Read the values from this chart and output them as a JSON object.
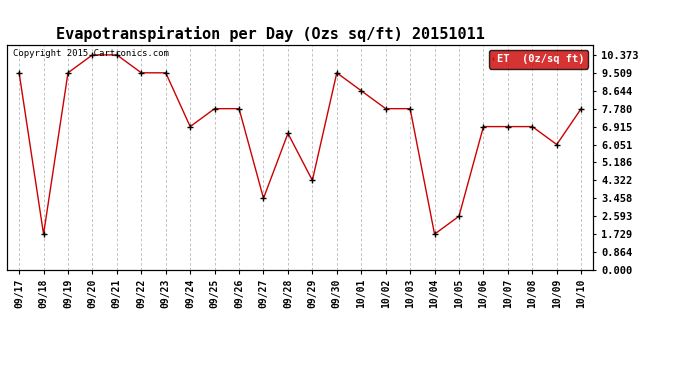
{
  "title": "Evapotranspiration per Day (Ozs sq/ft) 20151011",
  "copyright": "Copyright 2015 Cartronics.com",
  "legend_label": "ET  (0z/sq ft)",
  "x_labels": [
    "09/17",
    "09/18",
    "09/19",
    "09/20",
    "09/21",
    "09/22",
    "09/23",
    "09/24",
    "09/25",
    "09/26",
    "09/27",
    "09/28",
    "09/29",
    "09/30",
    "10/01",
    "10/02",
    "10/03",
    "10/04",
    "10/05",
    "10/06",
    "10/07",
    "10/08",
    "10/09",
    "10/10"
  ],
  "y_values": [
    9.509,
    1.729,
    9.509,
    10.373,
    10.373,
    9.509,
    9.509,
    6.915,
    7.78,
    7.78,
    3.458,
    6.588,
    4.322,
    9.509,
    8.644,
    7.78,
    7.78,
    1.729,
    2.593,
    6.915,
    6.915,
    6.915,
    6.051,
    7.78
  ],
  "yticks": [
    0.0,
    0.864,
    1.729,
    2.593,
    3.458,
    4.322,
    5.186,
    6.051,
    6.915,
    7.78,
    8.644,
    9.509,
    10.373
  ],
  "ylim": [
    0.0,
    10.85
  ],
  "line_color": "#cc0000",
  "marker_color": "#000000",
  "grid_color": "#aaaaaa",
  "bg_color": "#ffffff",
  "legend_bg": "#cc0000",
  "legend_text_color": "#ffffff",
  "title_fontsize": 11,
  "copyright_fontsize": 6.5,
  "tick_fontsize": 7,
  "ytick_fontsize": 7.5
}
